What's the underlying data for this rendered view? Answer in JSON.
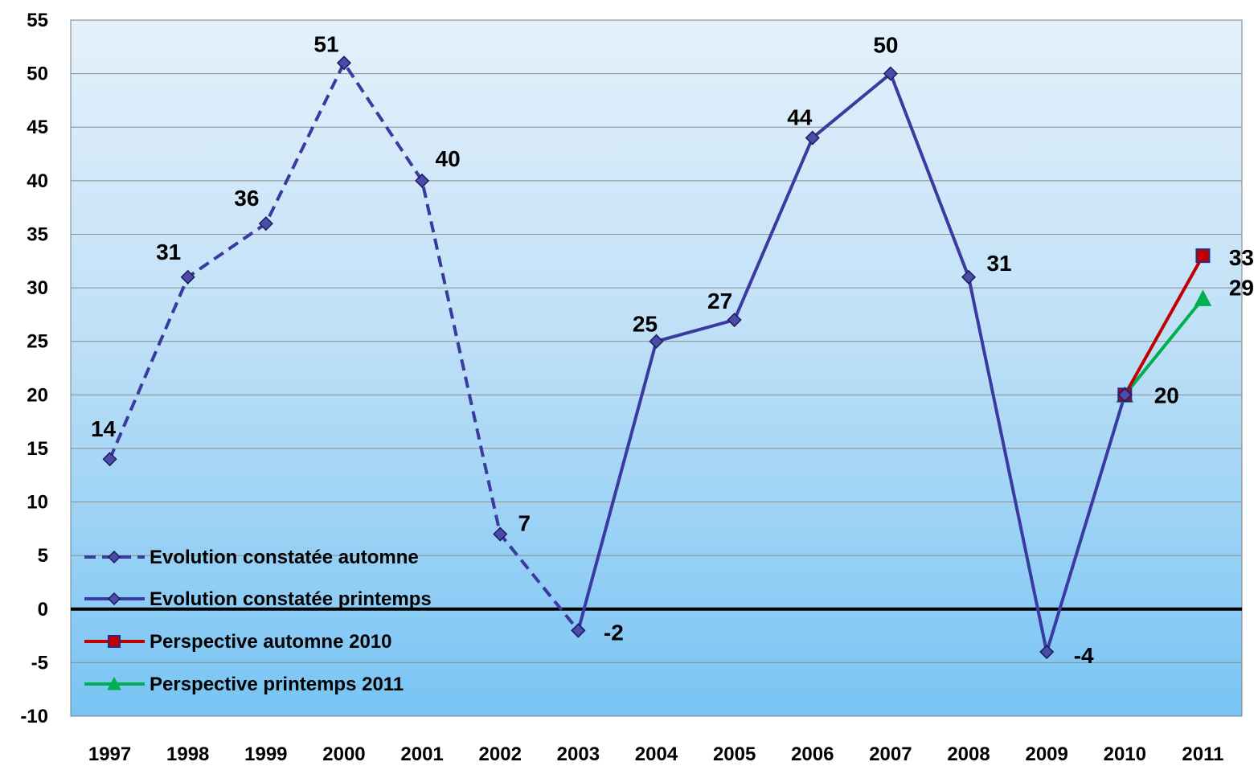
{
  "chart_data": {
    "type": "line",
    "title": "",
    "xlabel": "",
    "ylabel": "",
    "ylim": [
      -10,
      55
    ],
    "yticks": [
      55,
      50,
      45,
      40,
      35,
      30,
      25,
      20,
      15,
      10,
      5,
      0,
      -5,
      -10
    ],
    "yticks_labels": [
      "55",
      "50",
      "45",
      "40",
      "35",
      "30",
      "25",
      "20",
      "15",
      "10",
      "5",
      "0",
      "-5",
      "-10"
    ],
    "categories": [
      "1997",
      "1998",
      "1999",
      "2000",
      "2001",
      "2002",
      "2003",
      "2004",
      "2005",
      "2006",
      "2007",
      "2008",
      "2009",
      "2010",
      "2011"
    ],
    "grid": true,
    "legend_position": "bottom-left",
    "series": [
      {
        "name": "Evolution constatée automne",
        "style": "dashed",
        "marker": "diamond",
        "color": "#3a3aa0",
        "points": [
          {
            "x": "1997",
            "y": 14,
            "label": "14"
          },
          {
            "x": "1998",
            "y": 31,
            "label": "31"
          },
          {
            "x": "1999",
            "y": 36,
            "label": "36"
          },
          {
            "x": "2000",
            "y": 51,
            "label": "51"
          },
          {
            "x": "2001",
            "y": 40,
            "label": "40"
          },
          {
            "x": "2002",
            "y": 7,
            "label": "7"
          },
          {
            "x": "2003",
            "y": -2,
            "label": "-2"
          }
        ]
      },
      {
        "name": "Evolution constatée printemps",
        "style": "solid",
        "marker": "diamond",
        "color": "#3a3aa0",
        "points": [
          {
            "x": "2003",
            "y": -2,
            "label": ""
          },
          {
            "x": "2004",
            "y": 25,
            "label": "25"
          },
          {
            "x": "2005",
            "y": 27,
            "label": "27"
          },
          {
            "x": "2006",
            "y": 44,
            "label": "44"
          },
          {
            "x": "2007",
            "y": 50,
            "label": "50"
          },
          {
            "x": "2008",
            "y": 31,
            "label": "31"
          },
          {
            "x": "2009",
            "y": -4,
            "label": "-4"
          },
          {
            "x": "2010",
            "y": 20,
            "label": ""
          }
        ]
      },
      {
        "name": "Perspective automne 2010",
        "style": "solid",
        "marker": "square",
        "color": "#c00000",
        "points": [
          {
            "x": "2010",
            "y": 20,
            "label": "20"
          },
          {
            "x": "2011",
            "y": 33,
            "label": "33"
          }
        ]
      },
      {
        "name": "Perspective printemps 2011",
        "style": "solid",
        "marker": "triangle",
        "color": "#00b050",
        "points": [
          {
            "x": "2010",
            "y": 20,
            "label": ""
          },
          {
            "x": "2011",
            "y": 29,
            "label": "29"
          }
        ]
      }
    ]
  }
}
